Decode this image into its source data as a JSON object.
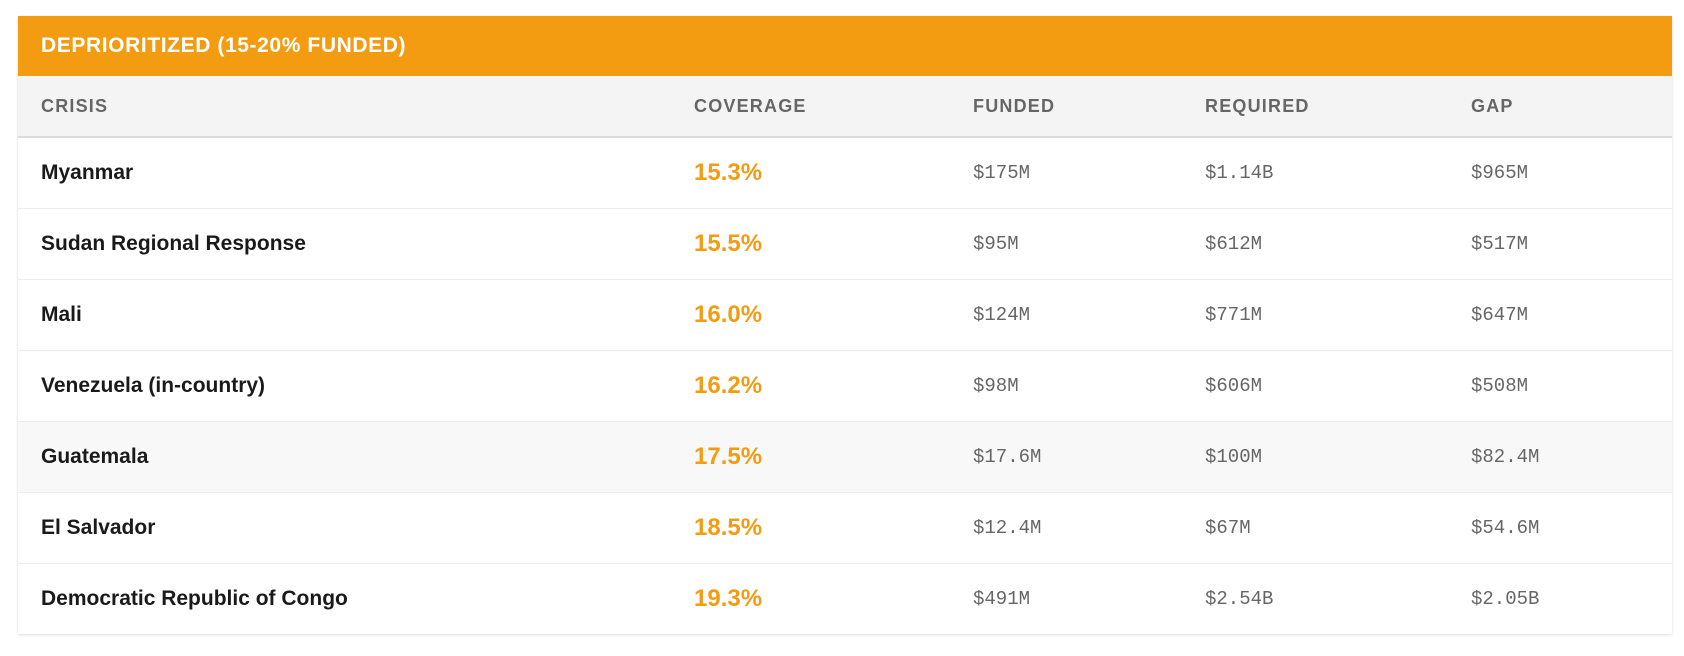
{
  "section": {
    "title": "DEPRIORITIZED (15-20% FUNDED)",
    "accent_color": "#f39c12"
  },
  "table": {
    "headers": {
      "crisis": "CRISIS",
      "coverage": "COVERAGE",
      "funded": "FUNDED",
      "required": "REQUIRED",
      "gap": "GAP"
    },
    "rows": [
      {
        "crisis": "Myanmar",
        "coverage": "15.3%",
        "funded": "$175M",
        "required": "$1.14B",
        "gap": "$965M"
      },
      {
        "crisis": "Sudan Regional Response",
        "coverage": "15.5%",
        "funded": "$95M",
        "required": "$612M",
        "gap": "$517M"
      },
      {
        "crisis": "Mali",
        "coverage": "16.0%",
        "funded": "$124M",
        "required": "$771M",
        "gap": "$647M"
      },
      {
        "crisis": "Venezuela (in-country)",
        "coverage": "16.2%",
        "funded": "$98M",
        "required": "$606M",
        "gap": "$508M"
      },
      {
        "crisis": "Guatemala",
        "coverage": "17.5%",
        "funded": "$17.6M",
        "required": "$100M",
        "gap": "$82.4M"
      },
      {
        "crisis": "El Salvador",
        "coverage": "18.5%",
        "funded": "$12.4M",
        "required": "$67M",
        "gap": "$54.6M"
      },
      {
        "crisis": "Democratic Republic of Congo",
        "coverage": "19.3%",
        "funded": "$491M",
        "required": "$2.54B",
        "gap": "$2.05B"
      }
    ]
  }
}
